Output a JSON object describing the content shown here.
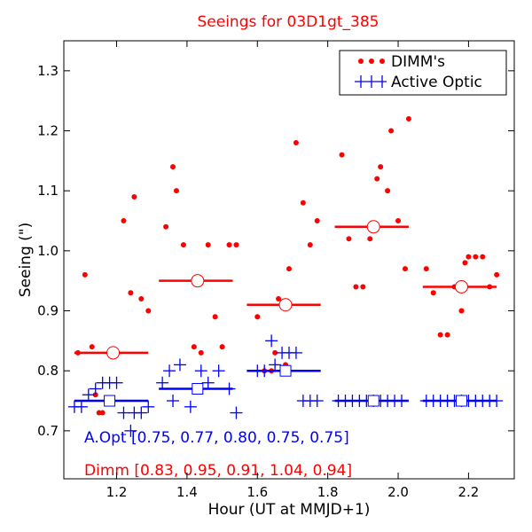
{
  "chart_data": {
    "type": "scatter",
    "title": "Seeings for 03D1gt_385",
    "xlabel": "Hour (UT at MMJD+1)",
    "ylabel": "Seeing (\")",
    "xlim": [
      1.05,
      2.33
    ],
    "ylim": [
      0.62,
      1.35
    ],
    "xticks": [
      1.2,
      1.4,
      1.6,
      1.8,
      2.0,
      2.2
    ],
    "yticks": [
      0.7,
      0.8,
      0.9,
      1.0,
      1.1,
      1.2,
      1.3
    ],
    "xtick_labels": [
      "1.2",
      "1.4",
      "1.6",
      "1.8",
      "2.0",
      "2.2"
    ],
    "ytick_labels": [
      "0.7",
      "0.8",
      "0.9",
      "1.0",
      "1.1",
      "1.2",
      "1.3"
    ],
    "grid": false,
    "legend_position": "top-right",
    "series": [
      {
        "name": "DIMM's",
        "color": "#ff0000",
        "marker": "dot",
        "x": [
          1.09,
          1.11,
          1.13,
          1.14,
          1.15,
          1.16,
          1.22,
          1.24,
          1.25,
          1.27,
          1.29,
          1.34,
          1.36,
          1.37,
          1.39,
          1.42,
          1.44,
          1.46,
          1.48,
          1.5,
          1.52,
          1.54,
          1.6,
          1.62,
          1.64,
          1.65,
          1.66,
          1.67,
          1.68,
          1.69,
          1.71,
          1.73,
          1.75,
          1.77,
          1.84,
          1.86,
          1.88,
          1.9,
          1.92,
          1.94,
          1.95,
          1.97,
          1.98,
          2.0,
          2.02,
          2.03,
          2.08,
          2.1,
          2.12,
          2.14,
          2.16,
          2.18,
          2.19,
          2.2,
          2.22,
          2.24,
          2.26,
          2.28
        ],
        "y": [
          0.83,
          0.96,
          0.84,
          0.76,
          0.73,
          0.73,
          1.05,
          0.93,
          1.09,
          0.92,
          0.9,
          1.04,
          1.14,
          1.1,
          1.01,
          0.84,
          0.83,
          1.01,
          0.89,
          0.84,
          1.01,
          1.01,
          0.89,
          0.8,
          0.8,
          0.83,
          0.92,
          0.8,
          0.81,
          0.97,
          1.18,
          1.08,
          1.01,
          1.05,
          1.16,
          1.02,
          0.94,
          0.94,
          1.02,
          1.12,
          1.14,
          1.1,
          1.2,
          1.05,
          0.97,
          1.22,
          0.97,
          0.93,
          0.86,
          0.86,
          0.94,
          0.9,
          0.98,
          0.99,
          0.99,
          0.99,
          0.94,
          0.96
        ]
      },
      {
        "name": "Active Optic",
        "color": "#0000ff",
        "marker": "plus",
        "x": [
          1.08,
          1.1,
          1.12,
          1.14,
          1.16,
          1.18,
          1.2,
          1.22,
          1.24,
          1.25,
          1.27,
          1.29,
          1.33,
          1.35,
          1.36,
          1.38,
          1.41,
          1.44,
          1.46,
          1.49,
          1.52,
          1.54,
          1.6,
          1.62,
          1.64,
          1.65,
          1.67,
          1.69,
          1.71,
          1.73,
          1.75,
          1.77,
          1.83,
          1.85,
          1.87,
          1.89,
          1.91,
          1.93,
          1.95,
          1.97,
          1.99,
          2.01,
          2.08,
          2.1,
          2.12,
          2.14,
          2.16,
          2.18,
          2.2,
          2.22,
          2.24,
          2.26,
          2.28
        ],
        "y": [
          0.74,
          0.74,
          0.76,
          0.77,
          0.78,
          0.78,
          0.78,
          0.73,
          0.7,
          0.73,
          0.73,
          0.74,
          0.78,
          0.8,
          0.75,
          0.81,
          0.74,
          0.8,
          0.78,
          0.8,
          0.77,
          0.73,
          0.8,
          0.8,
          0.85,
          0.81,
          0.83,
          0.83,
          0.83,
          0.75,
          0.75,
          0.75,
          0.75,
          0.75,
          0.75,
          0.75,
          0.75,
          0.75,
          0.75,
          0.75,
          0.75,
          0.75,
          0.75,
          0.75,
          0.75,
          0.75,
          0.75,
          0.75,
          0.75,
          0.75,
          0.75,
          0.75,
          0.75
        ]
      }
    ],
    "averages": {
      "dimm": {
        "color": "#ff0000",
        "x": [
          1.19,
          1.43,
          1.68,
          1.93,
          2.18
        ],
        "y": [
          0.83,
          0.95,
          0.91,
          1.04,
          0.94
        ],
        "ranges": [
          [
            1.08,
            1.29
          ],
          [
            1.32,
            1.53
          ],
          [
            1.57,
            1.78
          ],
          [
            1.82,
            2.03
          ],
          [
            2.07,
            2.28
          ]
        ]
      },
      "aopt": {
        "color": "#0000ff",
        "x": [
          1.18,
          1.43,
          1.68,
          1.93,
          2.18
        ],
        "y": [
          0.75,
          0.77,
          0.8,
          0.75,
          0.75
        ],
        "ranges": [
          [
            1.08,
            1.29
          ],
          [
            1.32,
            1.53
          ],
          [
            1.57,
            1.78
          ],
          [
            1.82,
            2.03
          ],
          [
            2.07,
            2.28
          ]
        ]
      }
    },
    "annotations": [
      {
        "text": "A.Opt [0.75, 0.77, 0.80, 0.75, 0.75]",
        "color": "#0000ff"
      },
      {
        "text": "Dimm [0.83, 0.95, 0.91, 1.04, 0.94]",
        "color": "#ff0000"
      }
    ]
  }
}
